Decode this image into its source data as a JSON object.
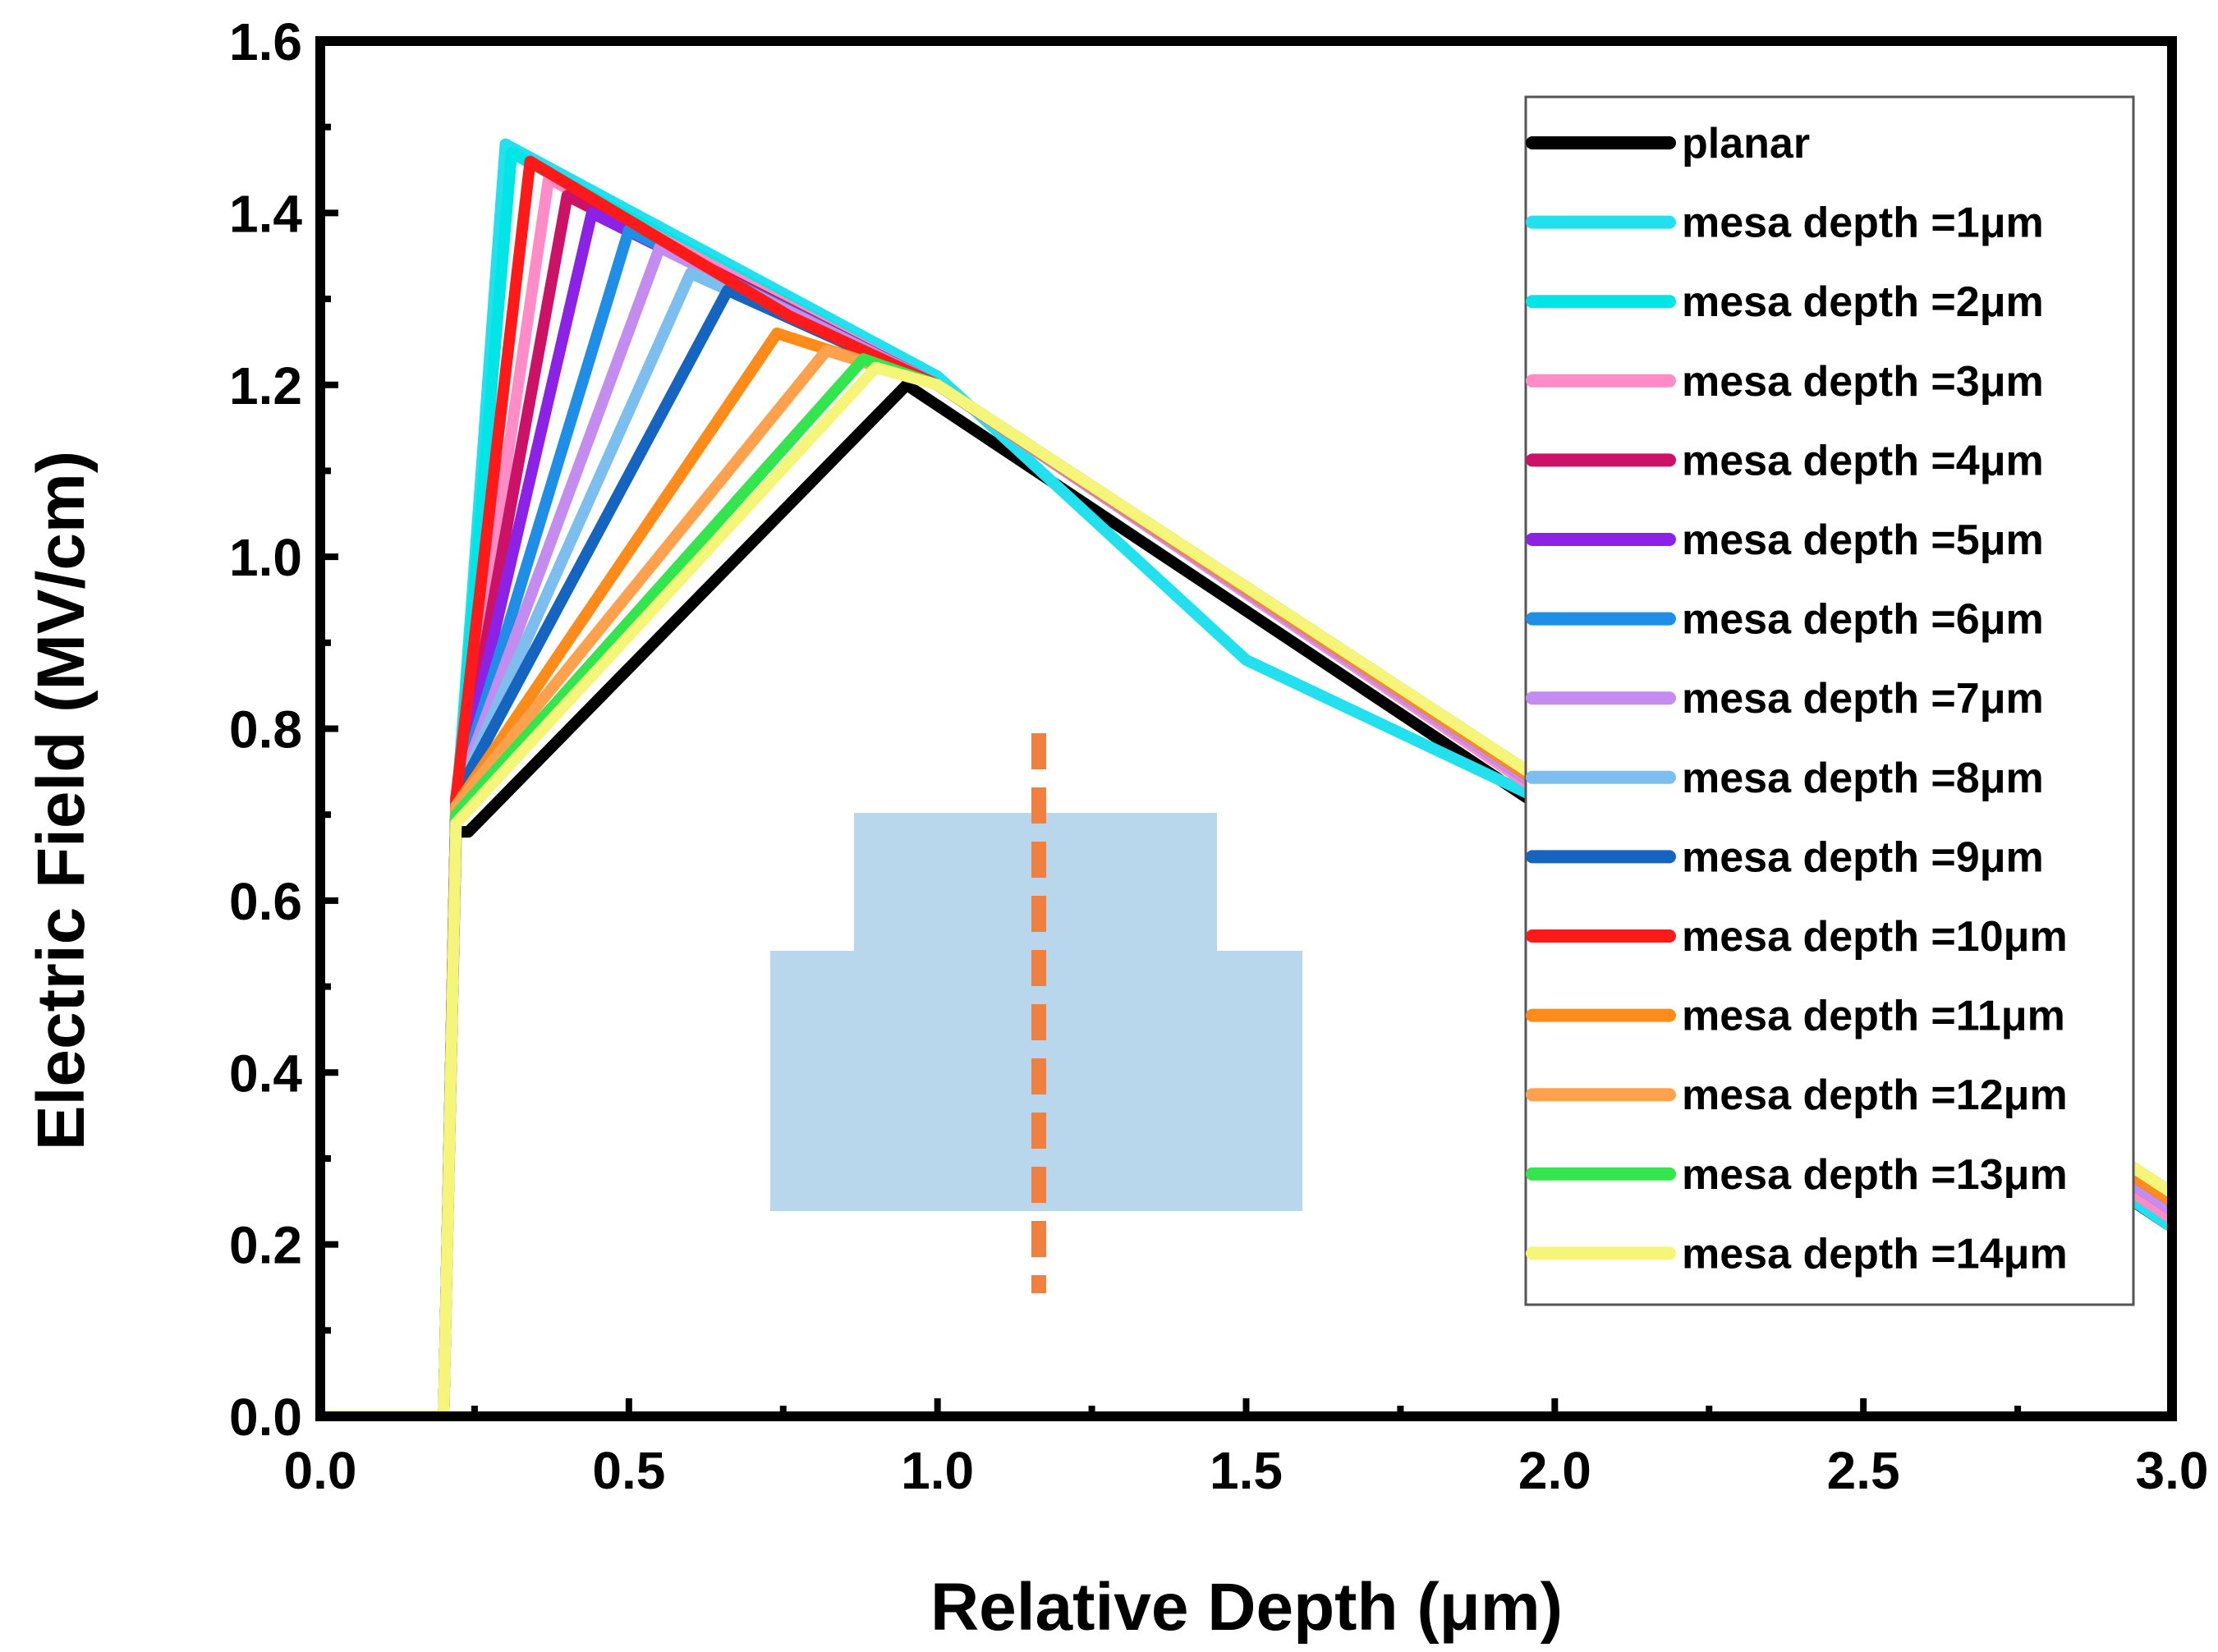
{
  "chart_data": {
    "type": "line",
    "title": "",
    "xlabel": "Relative Depth (μm)",
    "ylabel": "Electric Field (MV/cm)",
    "xlim": [
      0.0,
      3.0
    ],
    "ylim": [
      0.0,
      1.6
    ],
    "x_ticks": [
      "0.0",
      "0.5",
      "1.0",
      "1.5",
      "2.0",
      "2.5",
      "3.0"
    ],
    "y_ticks": [
      "0.0",
      "0.2",
      "0.4",
      "0.6",
      "0.8",
      "1.0",
      "1.2",
      "1.4",
      "1.6"
    ],
    "legend_position": "top-right",
    "series": [
      {
        "name": "planar",
        "color": "#000000",
        "x": [
          0.0,
          0.2,
          0.22,
          0.24,
          0.95,
          3.0
        ],
        "y": [
          0.0,
          0.0,
          0.68,
          0.68,
          1.2,
          0.22
        ]
      },
      {
        "name": "mesa depth =1μm",
        "color": "#22e0ee",
        "x": [
          0.0,
          0.2,
          0.22,
          0.3,
          1.0,
          1.5,
          2.0,
          3.0
        ],
        "y": [
          0.0,
          0.0,
          0.7,
          1.48,
          1.21,
          0.88,
          0.71,
          0.22
        ]
      },
      {
        "name": "mesa depth =2μm",
        "color": "#00e5e5",
        "x": [
          0.0,
          0.2,
          0.22,
          0.31,
          1.0,
          3.0
        ],
        "y": [
          0.0,
          0.0,
          0.71,
          1.47,
          1.2,
          0.23
        ]
      },
      {
        "name": "mesa depth =3μm",
        "color": "#ff8cc6",
        "x": [
          0.0,
          0.2,
          0.22,
          0.37,
          1.0,
          3.0
        ],
        "y": [
          0.0,
          0.0,
          0.71,
          1.44,
          1.2,
          0.23
        ]
      },
      {
        "name": "mesa depth =4μm",
        "color": "#cc1266",
        "x": [
          0.0,
          0.2,
          0.22,
          0.4,
          1.0,
          2.0,
          3.0
        ],
        "y": [
          0.0,
          0.0,
          0.71,
          1.42,
          1.2,
          0.72,
          0.24
        ]
      },
      {
        "name": "mesa depth =5μm",
        "color": "#8b22e6",
        "x": [
          0.0,
          0.2,
          0.22,
          0.44,
          1.0,
          3.0
        ],
        "y": [
          0.0,
          0.0,
          0.72,
          1.4,
          1.2,
          0.24
        ]
      },
      {
        "name": "mesa depth =6μm",
        "color": "#1f8ee6",
        "x": [
          0.0,
          0.2,
          0.22,
          0.5,
          1.0,
          3.0
        ],
        "y": [
          0.0,
          0.0,
          0.72,
          1.38,
          1.2,
          0.24
        ]
      },
      {
        "name": "mesa depth =7μm",
        "color": "#c58cf0",
        "x": [
          0.0,
          0.2,
          0.22,
          0.55,
          1.0,
          3.0
        ],
        "y": [
          0.0,
          0.0,
          0.72,
          1.36,
          1.2,
          0.24
        ]
      },
      {
        "name": "mesa depth =8μm",
        "color": "#7cbfee",
        "x": [
          0.0,
          0.2,
          0.22,
          0.6,
          1.0,
          3.0
        ],
        "y": [
          0.0,
          0.0,
          0.72,
          1.33,
          1.2,
          0.25
        ]
      },
      {
        "name": "mesa depth =9μm",
        "color": "#1565c0",
        "x": [
          0.0,
          0.2,
          0.22,
          0.66,
          1.0,
          3.0
        ],
        "y": [
          0.0,
          0.0,
          0.72,
          1.31,
          1.2,
          0.25
        ]
      },
      {
        "name": "mesa depth =10μm",
        "color": "#ff1a1a",
        "x": [
          0.0,
          0.2,
          0.22,
          0.34,
          0.76,
          1.0,
          3.0
        ],
        "y": [
          0.0,
          0.0,
          0.72,
          1.46,
          1.28,
          1.2,
          0.25
        ]
      },
      {
        "name": "mesa depth =11μm",
        "color": "#ff8c1a",
        "x": [
          0.0,
          0.2,
          0.22,
          0.74,
          1.0,
          3.0
        ],
        "y": [
          0.0,
          0.0,
          0.71,
          1.26,
          1.2,
          0.25
        ]
      },
      {
        "name": "mesa depth =12μm",
        "color": "#ffa14d",
        "x": [
          0.0,
          0.2,
          0.22,
          0.82,
          1.0,
          3.0
        ],
        "y": [
          0.0,
          0.0,
          0.71,
          1.24,
          1.2,
          0.26
        ]
      },
      {
        "name": "mesa depth =13μm",
        "color": "#33e64d",
        "x": [
          0.0,
          0.2,
          0.22,
          0.88,
          1.0,
          3.0
        ],
        "y": [
          0.0,
          0.0,
          0.7,
          1.23,
          1.2,
          0.26
        ]
      },
      {
        "name": "mesa depth =14μm",
        "color": "#f5f57a",
        "x": [
          0.0,
          0.2,
          0.22,
          0.9,
          1.0,
          3.0
        ],
        "y": [
          0.0,
          0.0,
          0.69,
          1.22,
          1.2,
          0.26
        ]
      }
    ],
    "inset": {
      "description": "mesa cross-section schematic with dashed cut line",
      "fill_color": "#b8d6ec",
      "cutline_color": "#f08040"
    }
  }
}
